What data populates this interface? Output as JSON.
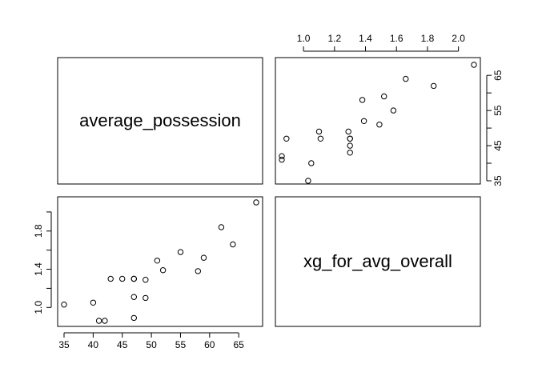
{
  "chart_data": {
    "type": "scatter",
    "variables": [
      "average_possession",
      "xg_for_avg_overall"
    ],
    "pairs": [
      [
        35,
        1.03
      ],
      [
        40,
        1.05
      ],
      [
        41,
        0.86
      ],
      [
        42,
        0.86
      ],
      [
        43,
        1.3
      ],
      [
        45,
        1.3
      ],
      [
        47,
        1.3
      ],
      [
        47,
        1.3
      ],
      [
        47,
        1.11
      ],
      [
        47,
        0.89
      ],
      [
        49,
        1.29
      ],
      [
        49,
        1.1
      ],
      [
        51,
        1.49
      ],
      [
        52,
        1.39
      ],
      [
        55,
        1.58
      ],
      [
        58,
        1.38
      ],
      [
        59,
        1.52
      ],
      [
        62,
        1.84
      ],
      [
        64,
        1.66
      ],
      [
        68,
        2.1
      ]
    ],
    "average_possession_ticks": [
      35,
      40,
      45,
      50,
      55,
      60,
      65
    ],
    "xg_for_avg_overall_ticks": [
      "1.0",
      "1.2",
      "1.4",
      "1.6",
      "1.8",
      "2.0"
    ],
    "average_possession_range": [
      35,
      68
    ],
    "xg_for_avg_overall_range": [
      0.86,
      2.1
    ],
    "bottom_left_y_ticks": [
      "1.0",
      "1.4",
      "1.8"
    ],
    "top_right_y_ticks": [
      35,
      45,
      55,
      65
    ],
    "bottom_left_x_ticks": [
      35,
      40,
      45,
      50,
      55,
      60,
      65
    ],
    "top_right_x_ticks": [
      "1.0",
      "1.2",
      "1.4",
      "1.6",
      "1.8",
      "2.0"
    ],
    "grid": false,
    "legend": "none"
  }
}
